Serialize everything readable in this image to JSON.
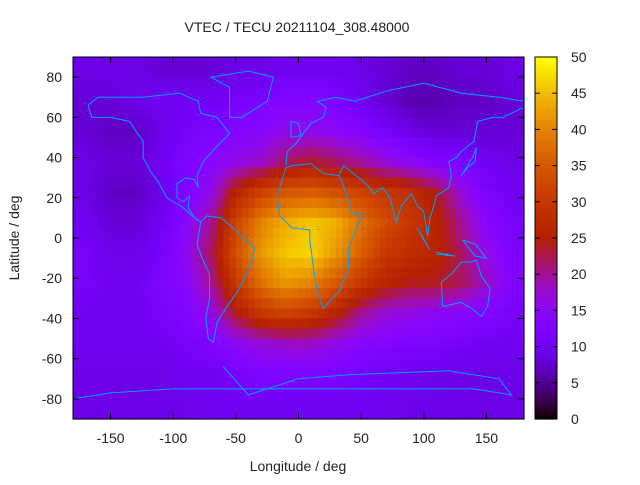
{
  "chart_data": {
    "type": "heatmap",
    "title": "VTEC / TECU 20211104_308.48000",
    "xlabel": "Longitude / deg",
    "ylabel": "Latitude / deg",
    "xlim": [
      -180,
      180
    ],
    "ylim": [
      -90,
      90
    ],
    "xticks": [
      "-150",
      "-100",
      "-50",
      "0",
      "50",
      "100",
      "150"
    ],
    "xtick_values": [
      -150,
      -100,
      -50,
      0,
      50,
      100,
      150
    ],
    "yticks": [
      "-80",
      "-60",
      "-40",
      "-20",
      "0",
      "20",
      "40",
      "60",
      "80"
    ],
    "ytick_values": [
      -80,
      -60,
      -40,
      -20,
      0,
      20,
      40,
      60,
      80
    ],
    "colorbar": {
      "range": [
        0,
        50
      ],
      "ticks": [
        "0",
        "5",
        "10",
        "15",
        "20",
        "25",
        "30",
        "35",
        "40",
        "45",
        "50"
      ],
      "tick_values": [
        0,
        5,
        10,
        15,
        20,
        25,
        30,
        35,
        40,
        45,
        50
      ],
      "palette": "gnuplot rgbformulae 7,5,15"
    },
    "coastline_color": "#00a0ff",
    "lon_centers": [
      -170,
      -150,
      -130,
      -110,
      -90,
      -70,
      -50,
      -30,
      -10,
      10,
      30,
      50,
      70,
      90,
      110,
      130,
      150,
      170
    ],
    "lat_centers": [
      82.5,
      67.5,
      52.5,
      37.5,
      22.5,
      7.5,
      -7.5,
      -22.5,
      -37.5,
      -52.5,
      -67.5,
      -82.5
    ],
    "values": [
      [
        9,
        9,
        9,
        8,
        8,
        8,
        9,
        9,
        10,
        10,
        10,
        9,
        8,
        7,
        7,
        8,
        8,
        9
      ],
      [
        8,
        8,
        9,
        10,
        10,
        10,
        11,
        12,
        13,
        13,
        12,
        10,
        8,
        6,
        6,
        7,
        7,
        8
      ],
      [
        8,
        7,
        7,
        9,
        11,
        12,
        13,
        14,
        16,
        16,
        15,
        13,
        11,
        9,
        8,
        8,
        8,
        8
      ],
      [
        9,
        8,
        8,
        10,
        12,
        14,
        16,
        18,
        22,
        24,
        22,
        20,
        17,
        15,
        13,
        12,
        10,
        9
      ],
      [
        9,
        7,
        7,
        9,
        12,
        16,
        26,
        32,
        35,
        36,
        34,
        32,
        30,
        28,
        24,
        17,
        12,
        10
      ],
      [
        10,
        8,
        8,
        10,
        14,
        20,
        32,
        40,
        44,
        46,
        44,
        38,
        33,
        30,
        26,
        20,
        14,
        11
      ],
      [
        11,
        9,
        9,
        11,
        15,
        22,
        34,
        42,
        46,
        47,
        42,
        36,
        30,
        28,
        26,
        22,
        16,
        12
      ],
      [
        11,
        10,
        10,
        12,
        14,
        20,
        30,
        38,
        42,
        40,
        35,
        30,
        26,
        24,
        24,
        22,
        18,
        13
      ],
      [
        10,
        10,
        10,
        11,
        13,
        16,
        24,
        30,
        32,
        30,
        26,
        20,
        17,
        16,
        15,
        14,
        13,
        11
      ],
      [
        10,
        10,
        10,
        10,
        11,
        12,
        15,
        17,
        18,
        18,
        16,
        14,
        13,
        12,
        12,
        11,
        10,
        10
      ],
      [
        9,
        9,
        9,
        9,
        10,
        10,
        11,
        12,
        12,
        12,
        12,
        11,
        10,
        10,
        9,
        9,
        9,
        9
      ],
      [
        9,
        9,
        9,
        9,
        9,
        10,
        10,
        10,
        10,
        10,
        10,
        10,
        10,
        9,
        9,
        9,
        9,
        9
      ]
    ]
  }
}
